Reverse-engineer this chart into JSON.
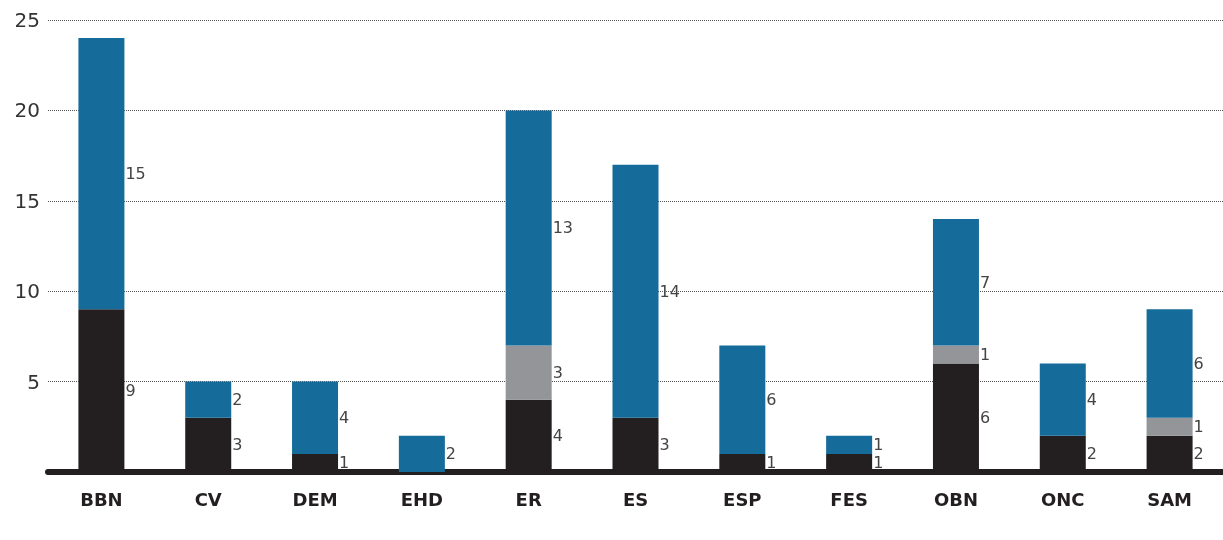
{
  "chart_data": {
    "type": "bar",
    "stacked": true,
    "categories": [
      "BBN",
      "CV",
      "DEM",
      "EHD",
      "ER",
      "ES",
      "ESP",
      "FES",
      "OBN",
      "ONC",
      "SAM"
    ],
    "series": [
      {
        "color": "#231f20",
        "values": [
          9,
          3,
          1,
          0,
          4,
          3,
          1,
          1,
          6,
          2,
          2
        ],
        "value_labels": [
          "9",
          "3",
          "1",
          null,
          "4",
          "3",
          "1",
          "1",
          "6",
          "2",
          "2"
        ]
      },
      {
        "color": "#939598",
        "values": [
          0,
          0,
          0,
          0,
          3,
          0,
          0,
          0,
          1,
          0,
          1
        ],
        "value_labels": [
          null,
          null,
          null,
          null,
          "3",
          null,
          null,
          null,
          "1",
          null,
          "1"
        ]
      },
      {
        "color": "#156b9a",
        "values": [
          15,
          2,
          4,
          2,
          13,
          14,
          6,
          1,
          7,
          4,
          6
        ],
        "value_labels": [
          "15",
          "2",
          "4",
          "2",
          "13",
          "14",
          "6",
          "1",
          "7",
          "4",
          "6"
        ]
      }
    ],
    "ylim": [
      0,
      25
    ],
    "yticks": [
      5,
      10,
      15,
      20,
      25
    ],
    "grid": "y"
  }
}
